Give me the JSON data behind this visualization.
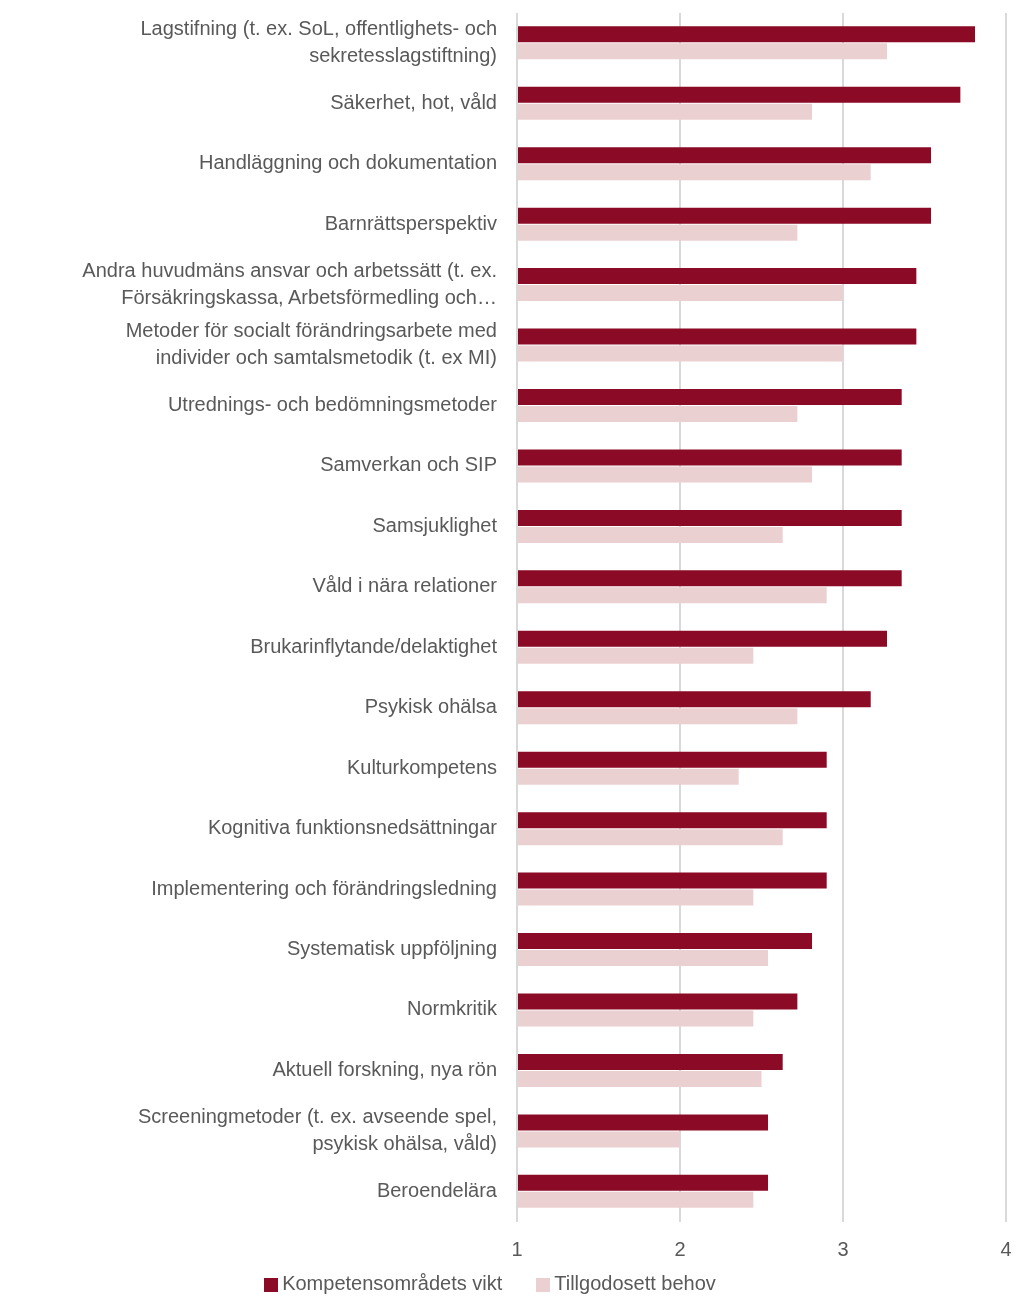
{
  "chart_data": {
    "type": "bar",
    "orientation": "horizontal",
    "categories": [
      "Lagstifning (t. ex. SoL, offentlighets- och sekretesslagstiftning)",
      "Säkerhet, hot, våld",
      "Handläggning och dokumentation",
      "Barnrättsperspektiv",
      "Andra huvudmäns ansvar och arbetssätt (t. ex. Försäkringskassa, Arbetsförmedling och…",
      "Metoder för socialt förändringsarbete med individer och samtalsmetodik (t. ex MI)",
      "Utrednings- och bedömningsmetoder",
      "Samverkan och SIP",
      "Samsjuklighet",
      "Våld i nära relationer",
      "Brukarinflytande/delaktighet",
      "Psykisk ohälsa",
      "Kulturkompetens",
      "Kognitiva funktionsnedsättningar",
      "Implementering och förändringsledning",
      "Systematisk uppföljning",
      "Normkritik",
      "Aktuell forskning, nya rön",
      "Screeningmetoder (t. ex. avseende spel, psykisk ohälsa, våld)",
      "Beroendelära"
    ],
    "series": [
      {
        "name": "Kompetensområdets vikt",
        "color": "#8b0a26",
        "values": [
          3.81,
          3.72,
          3.54,
          3.54,
          3.45,
          3.45,
          3.36,
          3.36,
          3.36,
          3.36,
          3.27,
          3.17,
          2.9,
          2.9,
          2.9,
          2.81,
          2.72,
          2.63,
          2.54,
          2.54
        ]
      },
      {
        "name": "Tillgodosett behov",
        "color": "#ebd0d1",
        "values": [
          3.27,
          2.81,
          3.17,
          2.72,
          3.0,
          3.0,
          2.72,
          2.81,
          2.63,
          2.9,
          2.45,
          2.72,
          2.36,
          2.63,
          2.45,
          2.54,
          2.45,
          2.5,
          2.0,
          2.45
        ]
      }
    ],
    "xlim": [
      1,
      4
    ],
    "xticks": [
      1,
      2,
      3,
      4
    ],
    "grid": "x",
    "legend": "bottom"
  }
}
